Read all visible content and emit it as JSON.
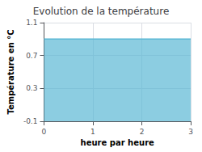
{
  "chart_data": {
    "type": "area",
    "title": "Evolution de la température",
    "xlabel": "heure par heure",
    "ylabel": "Température en °C",
    "x": [
      0,
      3
    ],
    "values": [
      0.9,
      0.9
    ],
    "color": "#5bb8d4",
    "xlim": [
      0,
      3
    ],
    "ylim": [
      -0.1,
      1.1
    ],
    "xticks": [
      0,
      1,
      2,
      3
    ],
    "yticks": [
      -0.1,
      0.3,
      0.7,
      1.1
    ],
    "grid": true
  }
}
